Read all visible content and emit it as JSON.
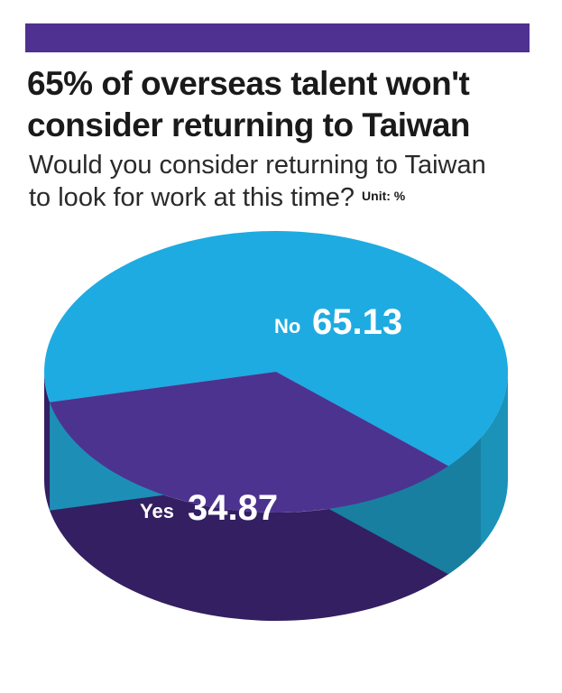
{
  "header": {
    "title_line1": "65% of overseas talent won't",
    "title_line2": "consider returning to Taiwan",
    "subtitle_line1": "Would you consider returning to Taiwan",
    "subtitle_line2": "to look for work at this time?",
    "unit": "Unit: %"
  },
  "colors": {
    "bar": "#4f3191",
    "no_top": "#1eabe1",
    "no_side": "#1b92b8",
    "no_side_dark": "#187fa1",
    "no_cut": "#1d8fb6",
    "yes_top": "#4d3390",
    "yes_side": "#331f62"
  },
  "chart_data": {
    "type": "pie",
    "style": "3d",
    "title": "65% of overseas talent won't consider returning to Taiwan",
    "subtitle": "Would you consider returning to Taiwan to look for work at this time?",
    "unit": "%",
    "slices": [
      {
        "name": "No",
        "value": 65.13,
        "color": "#1eabe1"
      },
      {
        "name": "Yes",
        "value": 34.87,
        "color": "#4d3390"
      }
    ]
  }
}
